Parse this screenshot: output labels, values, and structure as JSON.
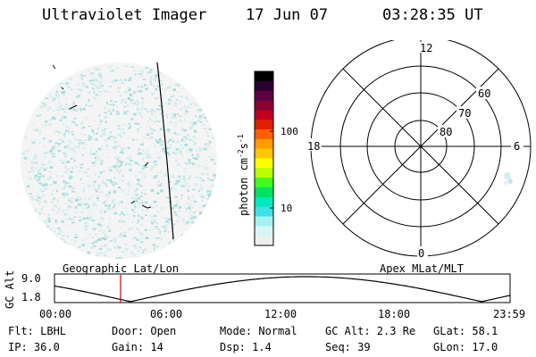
{
  "header": {
    "instrument": "Ultraviolet Imager",
    "date": "17 Jun 07",
    "time": "03:28:35 UT"
  },
  "colorbar": {
    "unit": "photon cm",
    "unit_exp1": "-2",
    "unit_s": "s",
    "unit_exp2": "-1",
    "ticks": [
      "100",
      "10"
    ],
    "colors": [
      "#000000",
      "#2a0030",
      "#5a0048",
      "#8a0030",
      "#c00020",
      "#e02000",
      "#ff6000",
      "#ff9a00",
      "#ffc800",
      "#ffff00",
      "#b8ff00",
      "#40ff20",
      "#00e060",
      "#00e8c0",
      "#40e0e8",
      "#a8f0f0",
      "#d8f4f4",
      "#eeeeee"
    ]
  },
  "polar": {
    "mlt_labels": {
      "top": "12",
      "left": "18",
      "right": "6",
      "bottom": "0"
    },
    "lat_labels": [
      "60",
      "70",
      "80"
    ]
  },
  "timeline": {
    "axis_label": "GC Alt",
    "y_ticks": [
      "9.0",
      "1.8"
    ],
    "left_title": "Geographic Lat/Lon",
    "right_title": "Apex MLat/MLT",
    "x_ticks": [
      "00:00",
      "06:00",
      "12:00",
      "18:00",
      "23:59"
    ],
    "current_hour": 3.48
  },
  "info": {
    "flt": "Flt: LBHL",
    "ip": "IP: 36.0",
    "door": "Door: Open",
    "gain": "Gain: 14",
    "mode": "Mode: Normal",
    "dsp": "Dsp:    1.4",
    "gcalt": "GC Alt: 2.3 Re",
    "seq": "Seq: 39",
    "glat": "GLat:  58.1",
    "glon": "GLon:  17.0"
  },
  "colors": {
    "speckle": "#a8dcdc",
    "speckle_light": "#d0ecec",
    "cursor": "#cc0000"
  }
}
